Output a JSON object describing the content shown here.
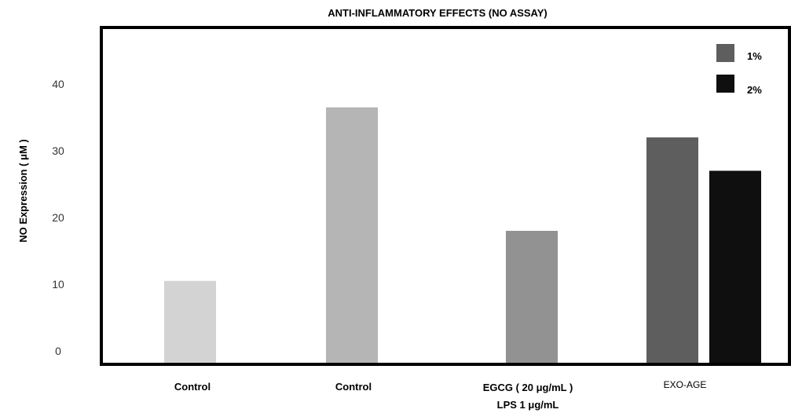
{
  "chart_data": {
    "type": "bar",
    "title": "ANTI-INFLAMMATORY EFFECTS (NO ASSAY)",
    "ylabel": "NO Expression ( μM )",
    "xlabel": "",
    "ylim": [
      0,
      40
    ],
    "yticks": [
      0,
      10,
      20,
      30,
      40
    ],
    "grid": false,
    "legend_position": "top-right",
    "legend": [
      {
        "label": "1%",
        "color": "#5e5e5e"
      },
      {
        "label": "2%",
        "color": "#0f0f0f"
      }
    ],
    "groups": [
      {
        "label": "Control",
        "sublabel": "",
        "bars": [
          {
            "value": 10.5,
            "color": "#d3d3d3"
          }
        ]
      },
      {
        "label": "Control",
        "sublabel": "",
        "bars": [
          {
            "value": 36.5,
            "color": "#b5b5b5"
          }
        ]
      },
      {
        "label": "EGCG ( 20 μg/mL )",
        "sublabel": "LPS 1 μg/mL",
        "bars": [
          {
            "value": 18,
            "color": "#929292"
          }
        ]
      },
      {
        "label": "EXO-AGE",
        "sublabel": "",
        "bars": [
          {
            "series": "1%",
            "value": 32,
            "color": "#5e5e5e"
          },
          {
            "series": "2%",
            "value": 27,
            "color": "#0f0f0f"
          }
        ]
      }
    ]
  }
}
